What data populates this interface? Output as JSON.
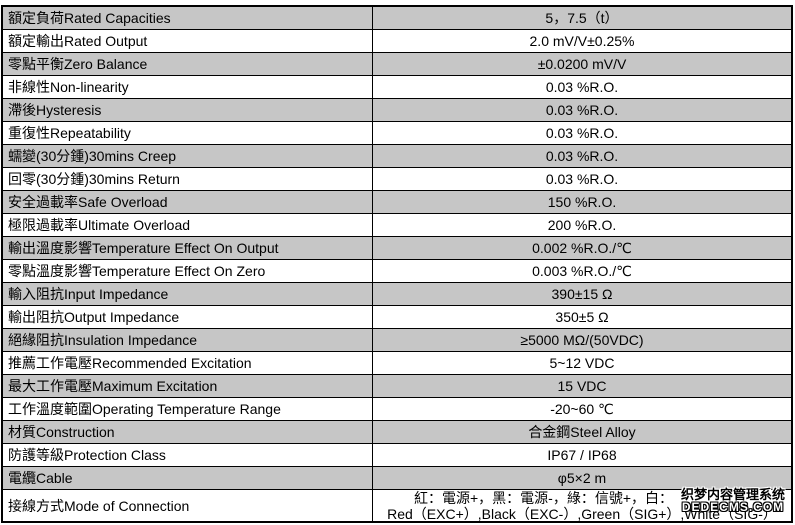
{
  "table": {
    "rows": [
      {
        "label": "額定負荷Rated Capacities",
        "value": "5，7.5（t）",
        "shaded": true
      },
      {
        "label": "額定輸出Rated Output",
        "value": "2.0 mV/V±0.25%",
        "shaded": false
      },
      {
        "label": "零點平衡Zero Balance",
        "value": "±0.0200 mV/V",
        "shaded": true
      },
      {
        "label": "非線性Non-linearity",
        "value": "0.03 %R.O.",
        "shaded": false
      },
      {
        "label": "滯後Hysteresis",
        "value": "0.03 %R.O.",
        "shaded": true
      },
      {
        "label": "重復性Repeatability",
        "value": "0.03 %R.O.",
        "shaded": false
      },
      {
        "label": "蠕變(30分鍾)30mins Creep",
        "value": "0.03 %R.O.",
        "shaded": true
      },
      {
        "label": "回零(30分鍾)30mins Return",
        "value": "0.03 %R.O.",
        "shaded": false
      },
      {
        "label": "安全過載率Safe Overload",
        "value": "150 %R.O.",
        "shaded": true
      },
      {
        "label": "極限過載率Ultimate Overload",
        "value": "200 %R.O.",
        "shaded": false
      },
      {
        "label": "輸出溫度影響Temperature Effect On Output",
        "value": "0.002 %R.O./℃",
        "shaded": true
      },
      {
        "label": "零點溫度影響Temperature Effect On Zero",
        "value": "0.003 %R.O./℃",
        "shaded": false
      },
      {
        "label": "輸入阻抗Input Impedance",
        "value": "390±15 Ω",
        "shaded": true
      },
      {
        "label": "輸出阻抗Output Impedance",
        "value": "350±5 Ω",
        "shaded": false
      },
      {
        "label": "絕緣阻抗Insulation Impedance",
        "value": "≥5000 MΩ/(50VDC)",
        "shaded": true
      },
      {
        "label": "推薦工作電壓Recommended Excitation",
        "value": "5~12 VDC",
        "shaded": false
      },
      {
        "label": "最大工作電壓Maximum Excitation",
        "value": "15 VDC",
        "shaded": true
      },
      {
        "label": "工作溫度範圍Operating Temperature Range",
        "value": "-20~60 ℃",
        "shaded": false
      },
      {
        "label": "材質Construction",
        "value": "合金鋼Steel Alloy",
        "shaded": true
      },
      {
        "label": "防護等級Protection Class",
        "value": "IP67 / IP68",
        "shaded": false
      },
      {
        "label": "電纜Cable",
        "value": "φ5×2 m",
        "shaded": true
      },
      {
        "label": "接線方式Mode of Connection",
        "value_line1": "紅：電源+，黑：電源-，綠：信號+，白：",
        "value_line2": "Red（EXC+）,Black（EXC-）,Green（SIG+）,White（SIG-）",
        "shaded": false
      }
    ]
  },
  "watermark": {
    "line1": "织梦内容管理系统",
    "line2": "DEDECMS.COM"
  },
  "colors": {
    "shaded_row": "#c6c6c6",
    "border": "#000000",
    "background": "#ffffff"
  }
}
